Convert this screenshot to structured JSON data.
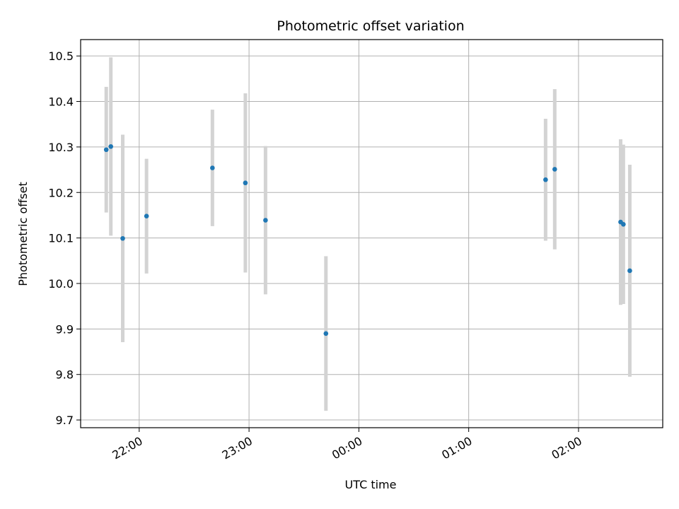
{
  "chart_data": {
    "type": "scatter",
    "title": "Photometric offset variation",
    "xlabel": "UTC time",
    "ylabel": "Photometric offset",
    "x_axis": {
      "kind": "time",
      "range": [
        "2000-01-01T21:28:00",
        "2000-01-02T02:46:00"
      ],
      "ticks": [
        {
          "t": "2000-01-01T22:00:00",
          "label": "22:00"
        },
        {
          "t": "2000-01-01T23:00:00",
          "label": "23:00"
        },
        {
          "t": "2000-01-02T00:00:00",
          "label": "00:00"
        },
        {
          "t": "2000-01-02T01:00:00",
          "label": "01:00"
        },
        {
          "t": "2000-01-02T02:00:00",
          "label": "02:00"
        }
      ]
    },
    "y_axis": {
      "range": [
        9.683,
        10.536
      ],
      "ticks": [
        9.7,
        9.8,
        9.9,
        10.0,
        10.1,
        10.2,
        10.3,
        10.4,
        10.5
      ],
      "tick_labels": [
        "9.7",
        "9.8",
        "9.9",
        "10.0",
        "10.1",
        "10.2",
        "10.3",
        "10.4",
        "10.5"
      ]
    },
    "grid": true,
    "marker_color": "#1f77b4",
    "errorbar_color": "#d3d3d3",
    "points": [
      {
        "t": "2000-01-01T21:42:00",
        "y": 10.294,
        "err": 0.138
      },
      {
        "t": "2000-01-01T21:44:30",
        "y": 10.301,
        "err": 0.196
      },
      {
        "t": "2000-01-01T21:51:00",
        "y": 10.099,
        "err": 0.228
      },
      {
        "t": "2000-01-01T22:04:00",
        "y": 10.148,
        "err": 0.126
      },
      {
        "t": "2000-01-01T22:40:00",
        "y": 10.254,
        "err": 0.128
      },
      {
        "t": "2000-01-01T22:58:00",
        "y": 10.221,
        "err": 0.197
      },
      {
        "t": "2000-01-01T23:09:00",
        "y": 10.139,
        "err": 0.163
      },
      {
        "t": "2000-01-01T23:42:00",
        "y": 9.89,
        "err": 0.17
      },
      {
        "t": "2000-01-02T01:42:00",
        "y": 10.228,
        "err": 0.134
      },
      {
        "t": "2000-01-02T01:47:00",
        "y": 10.251,
        "err": 0.176
      },
      {
        "t": "2000-01-02T02:23:00",
        "y": 10.135,
        "err": 0.182
      },
      {
        "t": "2000-01-02T02:24:30",
        "y": 10.13,
        "err": 0.175
      },
      {
        "t": "2000-01-02T02:28:00",
        "y": 10.028,
        "err": 0.233
      }
    ]
  }
}
